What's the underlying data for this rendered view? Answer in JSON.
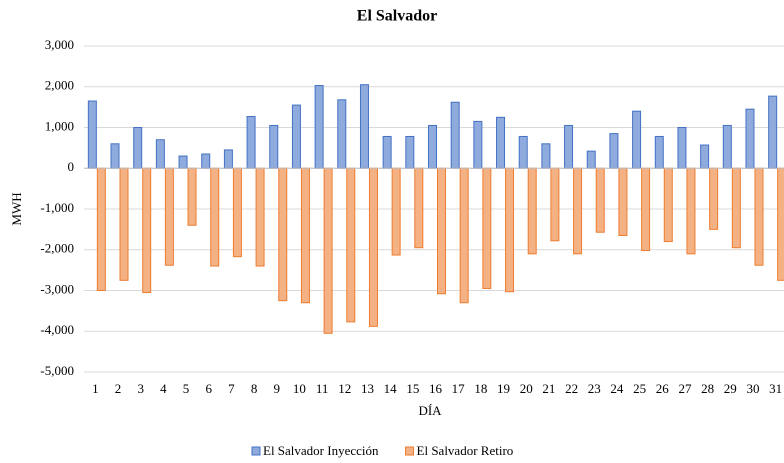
{
  "chart_data": {
    "type": "bar",
    "title": "El Salvador",
    "xlabel": "DÍA",
    "ylabel": "MWH",
    "categories": [
      "1",
      "2",
      "3",
      "4",
      "5",
      "6",
      "7",
      "8",
      "9",
      "10",
      "11",
      "12",
      "13",
      "14",
      "15",
      "16",
      "17",
      "18",
      "19",
      "20",
      "21",
      "22",
      "23",
      "24",
      "25",
      "26",
      "27",
      "28",
      "29",
      "30",
      "31"
    ],
    "series": [
      {
        "name": "El Salvador Inyección",
        "color": "#8faadc",
        "edgecolor": "#4472c4",
        "values": [
          1650,
          600,
          1000,
          700,
          300,
          350,
          450,
          1270,
          1050,
          1550,
          2030,
          1680,
          2050,
          780,
          780,
          1050,
          1620,
          1150,
          1250,
          780,
          600,
          1050,
          420,
          850,
          1400,
          780,
          1000,
          570,
          1050,
          1450,
          1770
        ]
      },
      {
        "name": "El Salvador Retiro",
        "color": "#f4b183",
        "edgecolor": "#ed7d31",
        "values": [
          -3000,
          -2750,
          -3050,
          -2380,
          -1400,
          -2400,
          -2170,
          -2400,
          -3250,
          -3300,
          -4050,
          -3770,
          -3880,
          -2130,
          -1950,
          -3080,
          -3300,
          -2950,
          -3030,
          -2100,
          -1780,
          -2100,
          -1570,
          -1650,
          -2020,
          -1800,
          -2100,
          -1500,
          -1950,
          -2380,
          -2750
        ]
      }
    ],
    "ylim": [
      -5000,
      3000
    ],
    "yticks": [
      {
        "value": 3000,
        "label": "3,000"
      },
      {
        "value": 2000,
        "label": "2,000"
      },
      {
        "value": 1000,
        "label": "1,000"
      },
      0,
      {
        "value": -1000,
        "label": "-1,000"
      },
      {
        "value": -2000,
        "label": "-2,000"
      },
      {
        "value": -3000,
        "label": "-3,000"
      },
      {
        "value": -4000,
        "label": "-4,000"
      },
      {
        "value": -5000,
        "label": "-5,000"
      }
    ],
    "grid": true,
    "legend": "bottom"
  }
}
